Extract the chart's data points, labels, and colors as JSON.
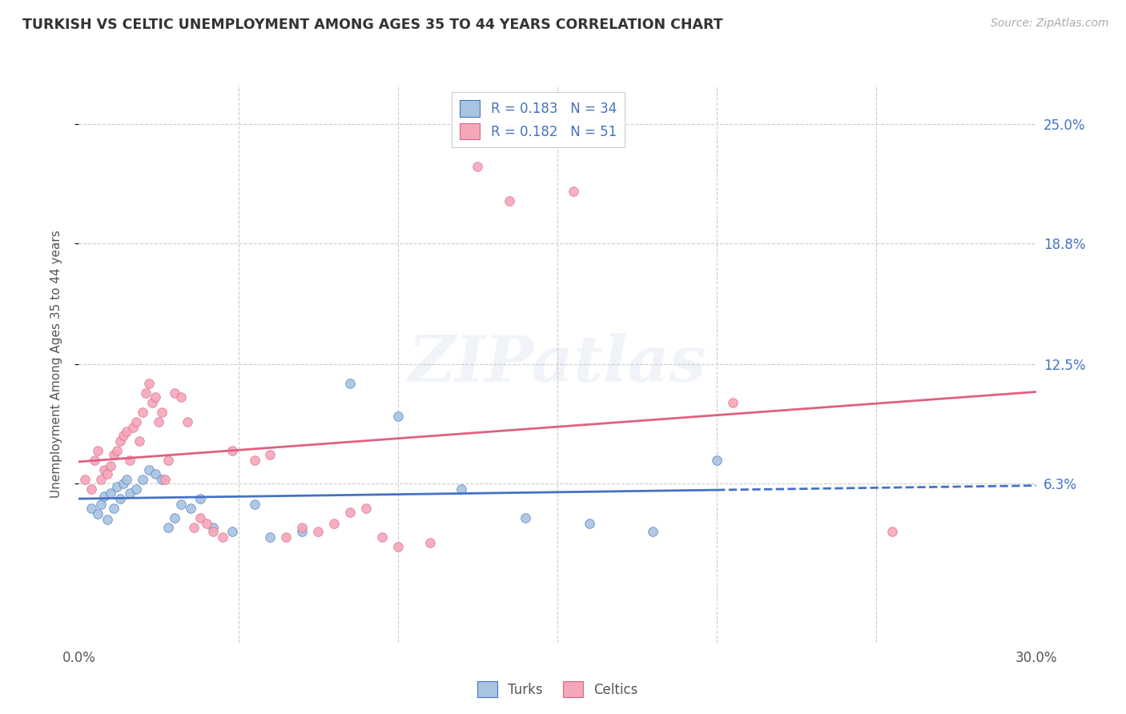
{
  "title": "TURKISH VS CELTIC UNEMPLOYMENT AMONG AGES 35 TO 44 YEARS CORRELATION CHART",
  "source": "Source: ZipAtlas.com",
  "ylabel": "Unemployment Among Ages 35 to 44 years",
  "xlim": [
    0.0,
    0.3
  ],
  "ylim": [
    -0.02,
    0.27
  ],
  "ytick_labels_right": [
    "6.3%",
    "12.5%",
    "18.8%",
    "25.0%"
  ],
  "ytick_values_right": [
    0.063,
    0.125,
    0.188,
    0.25
  ],
  "turks_color": "#a8c4e0",
  "celtics_color": "#f4a7b9",
  "turks_line_color": "#4472c4",
  "celtics_line_color": "#e06080",
  "turks_R": "0.183",
  "turks_N": "34",
  "celtics_R": "0.182",
  "celtics_N": "51",
  "turks_scatter_x": [
    0.004,
    0.006,
    0.007,
    0.008,
    0.009,
    0.01,
    0.011,
    0.012,
    0.013,
    0.014,
    0.015,
    0.016,
    0.018,
    0.02,
    0.022,
    0.024,
    0.026,
    0.028,
    0.03,
    0.032,
    0.035,
    0.038,
    0.042,
    0.048,
    0.055,
    0.06,
    0.07,
    0.085,
    0.1,
    0.12,
    0.14,
    0.16,
    0.18,
    0.2
  ],
  "turks_scatter_y": [
    0.05,
    0.047,
    0.052,
    0.056,
    0.044,
    0.058,
    0.05,
    0.061,
    0.055,
    0.063,
    0.065,
    0.058,
    0.06,
    0.065,
    0.07,
    0.068,
    0.065,
    0.04,
    0.045,
    0.052,
    0.05,
    0.055,
    0.04,
    0.038,
    0.052,
    0.035,
    0.038,
    0.115,
    0.098,
    0.06,
    0.045,
    0.042,
    0.038,
    0.075
  ],
  "celtics_scatter_x": [
    0.002,
    0.004,
    0.005,
    0.006,
    0.007,
    0.008,
    0.009,
    0.01,
    0.011,
    0.012,
    0.013,
    0.014,
    0.015,
    0.016,
    0.017,
    0.018,
    0.019,
    0.02,
    0.021,
    0.022,
    0.023,
    0.024,
    0.025,
    0.026,
    0.027,
    0.028,
    0.03,
    0.032,
    0.034,
    0.036,
    0.038,
    0.04,
    0.042,
    0.045,
    0.048,
    0.055,
    0.06,
    0.065,
    0.07,
    0.075,
    0.08,
    0.085,
    0.09,
    0.095,
    0.1,
    0.11,
    0.125,
    0.135,
    0.155,
    0.205,
    0.255
  ],
  "celtics_scatter_y": [
    0.065,
    0.06,
    0.075,
    0.08,
    0.065,
    0.07,
    0.068,
    0.072,
    0.078,
    0.08,
    0.085,
    0.088,
    0.09,
    0.075,
    0.092,
    0.095,
    0.085,
    0.1,
    0.11,
    0.115,
    0.105,
    0.108,
    0.095,
    0.1,
    0.065,
    0.075,
    0.11,
    0.108,
    0.095,
    0.04,
    0.045,
    0.042,
    0.038,
    0.035,
    0.08,
    0.075,
    0.078,
    0.035,
    0.04,
    0.038,
    0.042,
    0.048,
    0.05,
    0.035,
    0.03,
    0.032,
    0.228,
    0.21,
    0.215,
    0.105,
    0.038
  ],
  "watermark_text": "ZIPatlas",
  "background_color": "#ffffff",
  "grid_color": "#cccccc"
}
